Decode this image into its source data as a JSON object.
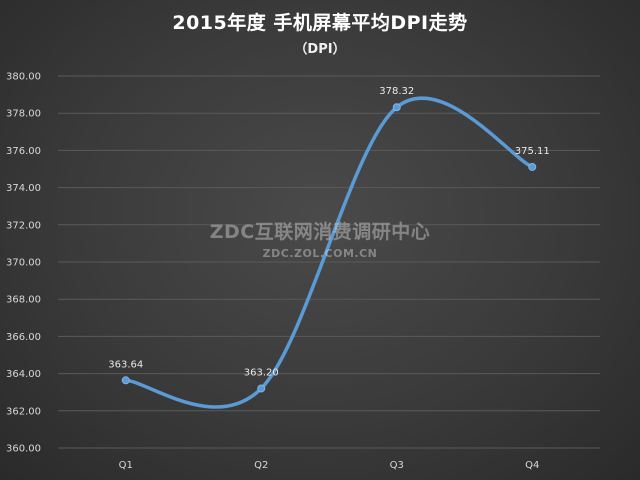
{
  "title": "2015年度 手机屏幕平均DPI走势",
  "subtitle": "（DPI）",
  "watermark": {
    "line1": "ZDC互联网消费调研中心",
    "line2": "ZDC.ZOL.COM.CN"
  },
  "colors": {
    "line": "#5b9bd5",
    "grid": "#5a5a5a"
  },
  "chart_data": {
    "type": "line",
    "categories": [
      "Q1",
      "Q2",
      "Q3",
      "Q4"
    ],
    "series": [
      {
        "values": [
          363.64,
          363.2,
          378.32,
          375.11
        ]
      }
    ],
    "data_labels": [
      "363.64",
      "363.20",
      "378.32",
      "375.11"
    ],
    "y_ticks": [
      "360.00",
      "362.00",
      "364.00",
      "366.00",
      "368.00",
      "370.00",
      "372.00",
      "374.00",
      "376.00",
      "378.00",
      "380.00"
    ],
    "ylim": [
      360,
      380
    ],
    "grid": true,
    "smooth": true
  }
}
